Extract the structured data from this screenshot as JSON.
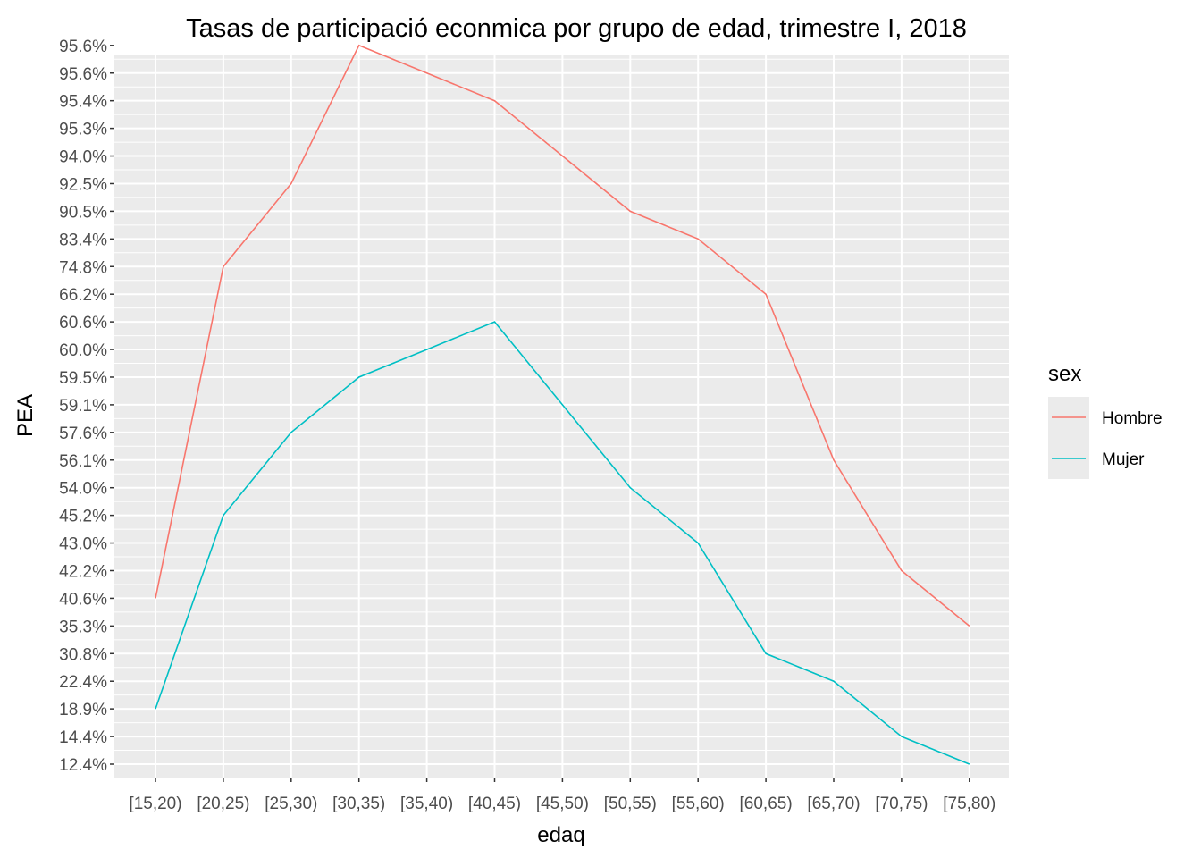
{
  "chart_data": {
    "type": "line",
    "title": "Tasas de participació econmica por grupo de edad, trimestre I, 2018",
    "xlabel": "edaq",
    "ylabel": "PEA",
    "categories": [
      "[15,20)",
      "[20,25)",
      "[25,30)",
      "[30,35)",
      "[35,40)",
      "[40,45)",
      "[45,50)",
      "[50,55)",
      "[55,60)",
      "[60,65)",
      "[65,70)",
      "[70,75)",
      "[75,80)"
    ],
    "y_axis_type": "discrete (each distinct value is its own evenly spaced level, sorted ascending)",
    "y_levels": [
      "12.4%",
      "14.4%",
      "18.9%",
      "22.4%",
      "30.8%",
      "35.3%",
      "40.6%",
      "42.2%",
      "43.0%",
      "45.2%",
      "54.0%",
      "56.1%",
      "57.6%",
      "59.1%",
      "59.5%",
      "60.0%",
      "60.6%",
      "66.2%",
      "74.8%",
      "83.4%",
      "90.5%",
      "92.5%",
      "94.0%",
      "95.3%",
      "95.4%",
      "95.6%",
      "95.6%"
    ],
    "series": [
      {
        "name": "Hombre",
        "color": "#F8766D",
        "values": [
          "40.6%",
          "74.8%",
          "92.5%",
          "95.6%",
          "95.6%",
          "95.4%",
          "94.0%",
          "90.5%",
          "83.4%",
          "66.2%",
          "56.1%",
          "42.2%",
          "35.3%"
        ],
        "level_index": [
          6,
          18,
          21,
          26,
          25,
          24,
          22,
          20,
          19,
          17,
          11,
          7,
          5
        ]
      },
      {
        "name": "Mujer",
        "color": "#00BFC4",
        "values": [
          "18.9%",
          "45.2%",
          "57.6%",
          "59.5%",
          "60.0%",
          "60.6%",
          "59.1%",
          "54.0%",
          "43.0%",
          "30.8%",
          "22.4%",
          "14.4%",
          "12.4%"
        ],
        "level_index": [
          2,
          9,
          12,
          14,
          15,
          16,
          13,
          10,
          8,
          4,
          3,
          1,
          0
        ]
      }
    ],
    "legend": {
      "title": "sex",
      "position": "right"
    },
    "grid": true
  }
}
